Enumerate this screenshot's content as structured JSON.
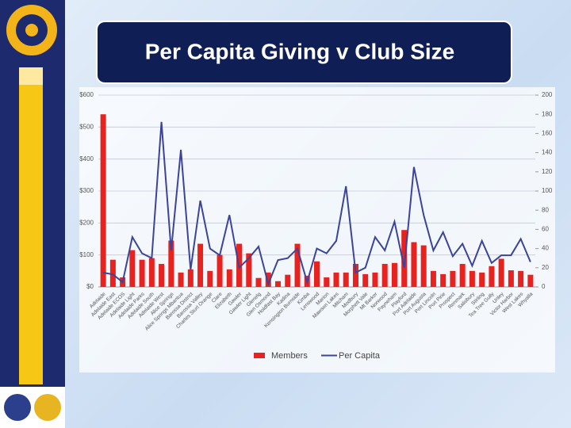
{
  "chart_data": {
    "type": "bar_line",
    "title": "Per Capita Giving v Club Size",
    "categories": [
      "Adelaide",
      "Adelaide East",
      "Adelaide ECOS",
      "Adelaide Light",
      "Adelaide Parks",
      "Adelaide South",
      "Adelaide West",
      "Alice Springs",
      "Alice Springs Mbantua",
      "Barossa District",
      "Barossa Valley",
      "Charles Sturt Orange",
      "Clare",
      "Elizabeth",
      "Gawler",
      "Gawler Light",
      "Glenelg",
      "Glen Osmond",
      "Holdfast Bay",
      "Kadina",
      "Kensington Burnside",
      "Kimba",
      "Lenswood",
      "Marion",
      "Mawson Lakes",
      "Mitcham",
      "Modbury",
      "Morphett Vale",
      "Mt Barker",
      "Norwood",
      "Payneham",
      "Playford",
      "Port Adelaide",
      "Port Augusta",
      "Port Lincoln",
      "Port Pirie",
      "Prospect",
      "Renmark",
      "Salisbury",
      "Stirling",
      "Tea Tree Gully",
      "Unley",
      "Victor Harbor",
      "West Lakes",
      "Whyalla"
    ],
    "series": [
      {
        "name": "Members",
        "color": "#e8231f",
        "type": "bar",
        "values": [
          540,
          85,
          30,
          115,
          85,
          90,
          72,
          145,
          45,
          55,
          135,
          50,
          100,
          55,
          135,
          105,
          28,
          45,
          18,
          38,
          135,
          35,
          80,
          30,
          45,
          45,
          72,
          40,
          45,
          72,
          75,
          178,
          140,
          130,
          50,
          40,
          50,
          72,
          50,
          45,
          65,
          88,
          52,
          50,
          38
        ]
      },
      {
        "name": "Per Capita",
        "color": "#3c4499",
        "type": "line",
        "axis": "y2",
        "values": [
          15,
          13,
          5,
          52,
          35,
          30,
          172,
          38,
          143,
          18,
          90,
          40,
          33,
          75,
          20,
          30,
          42,
          3,
          28,
          30,
          40,
          5,
          40,
          35,
          48,
          105,
          15,
          20,
          52,
          38,
          68,
          20,
          125,
          75,
          38,
          57,
          32,
          45,
          22,
          48,
          25,
          33,
          33,
          50,
          26
        ]
      }
    ],
    "ylim": [
      0,
      600
    ],
    "yticks": [
      {
        "value": 0,
        "label": "$0"
      },
      {
        "value": 100,
        "label": "$100"
      },
      {
        "value": 200,
        "label": "$200"
      },
      {
        "value": 300,
        "label": "$300"
      },
      {
        "value": 400,
        "label": "$400"
      },
      {
        "value": 500,
        "label": "$500"
      },
      {
        "value": 600,
        "label": "$600"
      }
    ],
    "y2lim": [
      0,
      200
    ],
    "y2ticks": [
      0,
      20,
      40,
      60,
      80,
      100,
      120,
      140,
      160,
      180,
      200
    ],
    "grid": true
  }
}
